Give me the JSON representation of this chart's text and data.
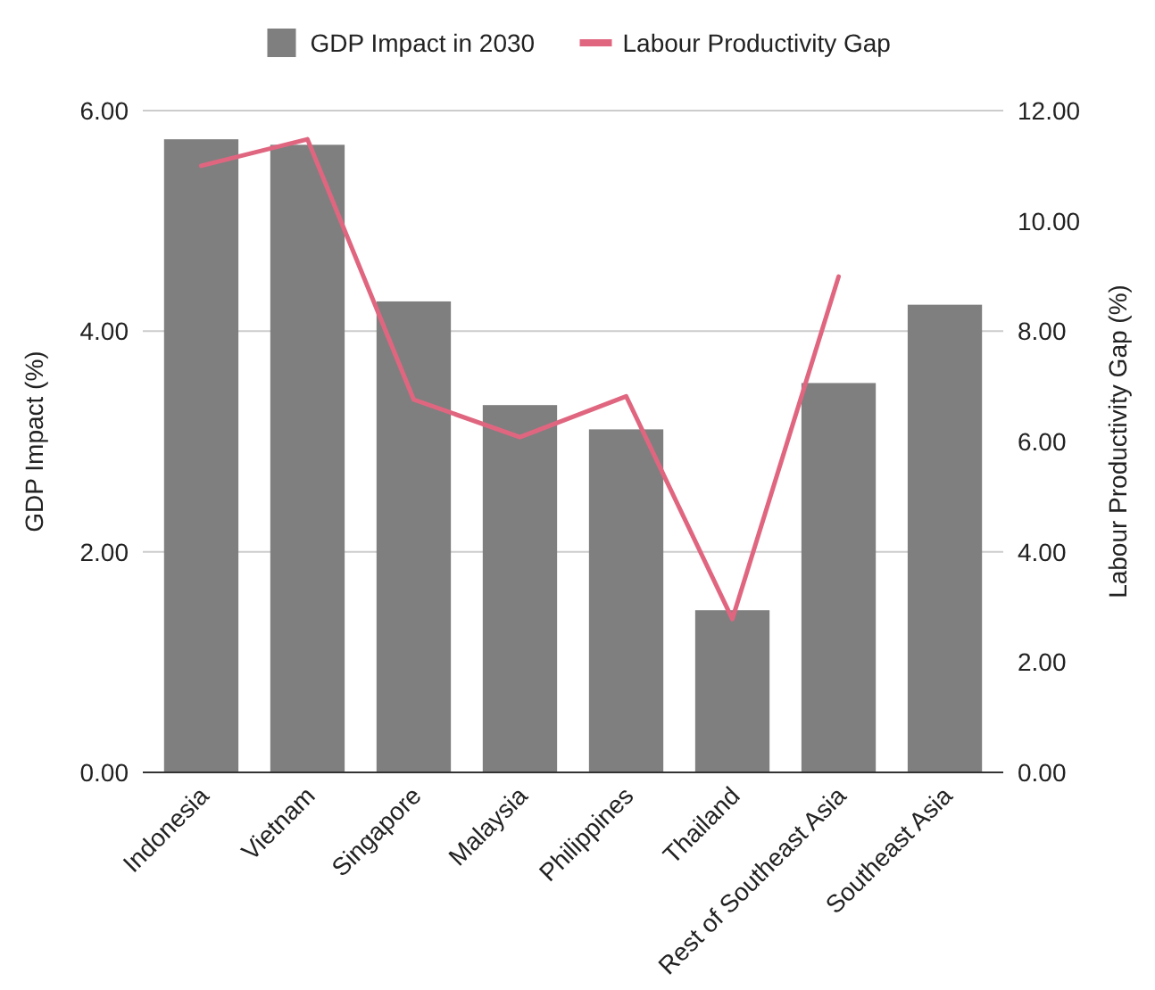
{
  "chart_data": {
    "type": "bar",
    "categories": [
      "Indonesia",
      "Vietnam",
      "Singapore",
      "Malaysia",
      "Philippines",
      "Thailand",
      "Rest of Southeast Asia",
      "Southeast Asia"
    ],
    "series": [
      {
        "name": "GDP Impact in 2030",
        "color": "#7f7f7f",
        "values": [
          5.74,
          5.69,
          4.27,
          3.33,
          3.11,
          1.47,
          3.53,
          4.24
        ]
      },
      {
        "name": "Labour Productivity Gap",
        "type": "line",
        "axis": "y2",
        "color": "#e06680",
        "values": [
          11.0,
          11.48,
          6.76,
          6.08,
          6.82,
          2.78,
          8.99,
          null
        ]
      }
    ],
    "ylabel": "GDP Impact (%)",
    "y2label": "Labour Productivity Gap (%)",
    "ylim": [
      0,
      6
    ],
    "yticks": [
      {
        "value": 0,
        "label": "0.00"
      },
      {
        "value": 2,
        "label": "2.00"
      },
      {
        "value": 4,
        "label": "4.00"
      },
      {
        "value": 6,
        "label": "6.00"
      }
    ],
    "y2lim": [
      0,
      12
    ],
    "y2ticks": [
      {
        "value": 0,
        "label": "0.00"
      },
      {
        "value": 2,
        "label": "2.00"
      },
      {
        "value": 4,
        "label": "4.00"
      },
      {
        "value": 6,
        "label": "6.00"
      },
      {
        "value": 8,
        "label": "8.00"
      },
      {
        "value": 10,
        "label": "10.00"
      },
      {
        "value": 12,
        "label": "12.00"
      }
    ],
    "grid": "y",
    "legend": "top"
  }
}
